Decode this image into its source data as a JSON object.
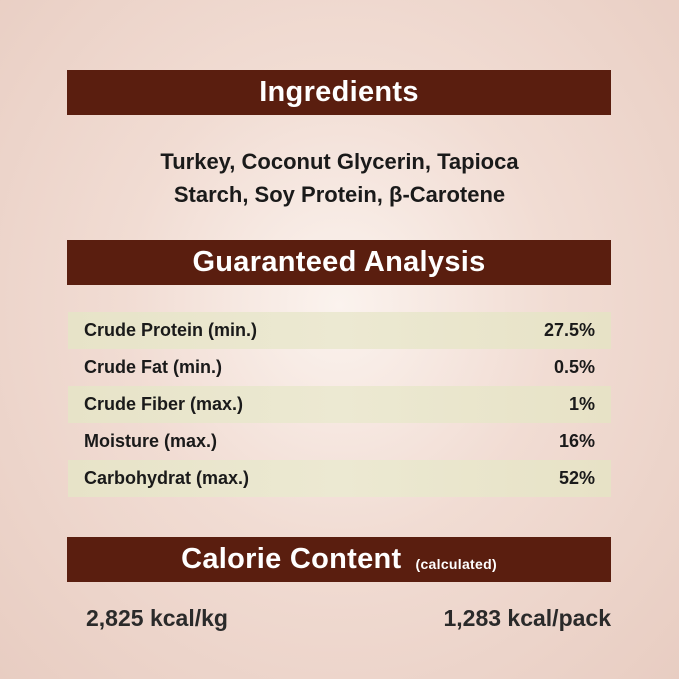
{
  "ingredients": {
    "title": "Ingredients",
    "line1": "Turkey, Coconut Glycerin, Tapioca",
    "line2": "Starch, Soy Protein, β-Carotene"
  },
  "analysis": {
    "title": "Guaranteed Analysis",
    "rows": [
      {
        "label": "Crude Protein (min.)",
        "value": "27.5%"
      },
      {
        "label": "Crude Fat (min.)",
        "value": "0.5%"
      },
      {
        "label": "Crude Fiber (max.)",
        "value": "1%"
      },
      {
        "label": "Moisture (max.)",
        "value": "16%"
      },
      {
        "label": "Carbohydrat (max.)",
        "value": "52%"
      }
    ]
  },
  "calorie": {
    "title": "Calorie Content",
    "note": "(calculated)",
    "per_kg": "2,825 kcal/kg",
    "per_pack": "1,283 kcal/pack"
  },
  "colors": {
    "header_bar": "#5a1e0f",
    "row_shade": "#e9e6cc"
  }
}
